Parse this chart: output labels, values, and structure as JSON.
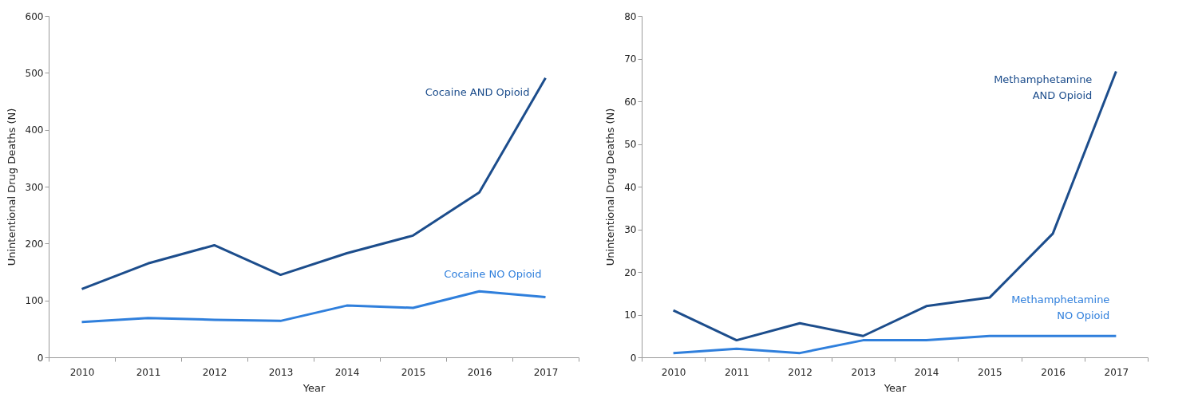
{
  "chart_data": [
    {
      "type": "line",
      "xlabel": "Year",
      "ylabel": "Unintentional Drug Deaths (N)",
      "categories": [
        "2010",
        "2011",
        "2012",
        "2013",
        "2014",
        "2015",
        "2016",
        "2017"
      ],
      "ylim": [
        0,
        600
      ],
      "yticks": [
        0,
        100,
        200,
        300,
        400,
        500,
        600
      ],
      "series": [
        {
          "name": "Cocaine AND Opioid",
          "color": "#1c4d8c",
          "values": [
            120,
            165,
            197,
            145,
            183,
            214,
            290,
            491
          ]
        },
        {
          "name": "Cocaine NO Opioid",
          "color": "#2f7fdc",
          "values": [
            62,
            69,
            66,
            64,
            91,
            87,
            116,
            106
          ]
        }
      ]
    },
    {
      "type": "line",
      "xlabel": "Year",
      "ylabel": "Unintentional Drug Deaths (N)",
      "categories": [
        "2010",
        "2011",
        "2012",
        "2013",
        "2014",
        "2015",
        "2016",
        "2017"
      ],
      "ylim": [
        0,
        80
      ],
      "yticks": [
        0,
        10,
        20,
        30,
        40,
        50,
        60,
        70,
        80
      ],
      "series": [
        {
          "name": "Methamphetamine AND Opioid",
          "color": "#1c4d8c",
          "values": [
            11,
            4,
            8,
            5,
            12,
            14,
            29,
            67
          ]
        },
        {
          "name": "Methamphetamine NO Opioid",
          "color": "#2f7fdc",
          "values": [
            1,
            2,
            1,
            4,
            4,
            5,
            5,
            5
          ]
        }
      ]
    }
  ]
}
